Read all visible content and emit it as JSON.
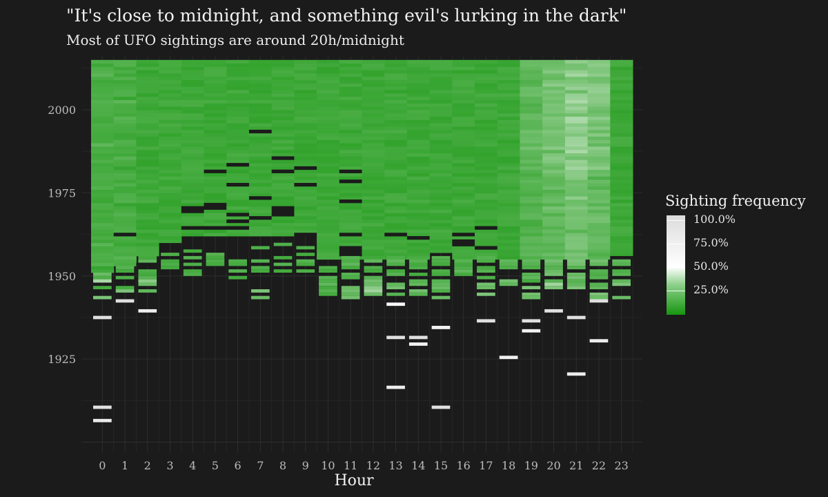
{
  "title": "\"It's close to midnight, and something evil's lurking in the dark\"",
  "subtitle": "Most of UFO sightings are around 20h/midnight",
  "chart_data": {
    "type": "heatmap",
    "xlabel": "Hour",
    "ylabel": "",
    "x_ticks": [
      "0",
      "1",
      "2",
      "3",
      "4",
      "5",
      "6",
      "7",
      "8",
      "9",
      "10",
      "11",
      "12",
      "13",
      "14",
      "15",
      "16",
      "17",
      "18",
      "19",
      "20",
      "21",
      "22",
      "23"
    ],
    "y_ticks": [
      "1925",
      "1950",
      "1975",
      "2000"
    ],
    "xlim": [
      -0.5,
      23.5
    ],
    "ylim": [
      1897,
      2016
    ],
    "grid": true,
    "legend": {
      "title": "Sighting frequency",
      "position": "right",
      "labels": [
        "100.0%",
        "75.0%",
        "50.0%",
        "25.0%"
      ]
    },
    "colors": {
      "background": "#1b1b1b",
      "low": "#16960f",
      "mid": "#ffffff",
      "high": "#dcdcdc",
      "empty": "#1b1b1b"
    },
    "series": [
      {
        "hour": 0,
        "dense_from": 1951,
        "sparse": [
          [
            1950,
            0.18
          ],
          [
            1949,
            0.12
          ],
          [
            1948,
            0.32
          ],
          [
            1946,
            0.1
          ],
          [
            1943,
            0.22
          ],
          [
            1937,
            0.95
          ],
          [
            1910,
            0.95
          ],
          [
            1906,
            0.8
          ]
        ],
        "gaps": []
      },
      {
        "hour": 1,
        "dense_from": 1953,
        "sparse": [
          [
            1952,
            0.14
          ],
          [
            1951,
            0.1
          ],
          [
            1949,
            0.12
          ],
          [
            1946,
            0.1
          ],
          [
            1945,
            0.22
          ],
          [
            1942,
            0.95
          ]
        ],
        "gaps": [
          1962
        ]
      },
      {
        "hour": 2,
        "dense_from": 1956,
        "sparse": [
          [
            1955,
            0.1
          ],
          [
            1954,
            0.16
          ],
          [
            1951,
            0.12
          ],
          [
            1950,
            0.1
          ],
          [
            1949,
            0.14
          ],
          [
            1948,
            0.25
          ],
          [
            1947,
            0.18
          ],
          [
            1945,
            0.16
          ],
          [
            1939,
            0.75
          ]
        ],
        "gaps": [
          1953
        ]
      },
      {
        "hour": 3,
        "dense_from": 1960,
        "sparse": [
          [
            1956,
            0.12
          ],
          [
            1954,
            0.1
          ],
          [
            1953,
            0.12
          ],
          [
            1952,
            0.1
          ]
        ],
        "gaps": []
      },
      {
        "hour": 4,
        "dense_from": 1962,
        "sparse": [
          [
            1957,
            0.1
          ],
          [
            1955,
            0.14
          ],
          [
            1953,
            0.12
          ],
          [
            1951,
            0.1
          ],
          [
            1950,
            0.12
          ]
        ],
        "gaps": [
          1969,
          1970,
          1964
        ]
      },
      {
        "hour": 5,
        "dense_from": 1962,
        "sparse": [
          [
            1956,
            0.14
          ],
          [
            1955,
            0.1
          ],
          [
            1954,
            0.12
          ],
          [
            1953,
            0.1
          ]
        ],
        "gaps": [
          1981,
          1971,
          1970,
          1964
        ]
      },
      {
        "hour": 6,
        "dense_from": 1962,
        "sparse": [
          [
            1954,
            0.12
          ],
          [
            1953,
            0.1
          ],
          [
            1951,
            0.14
          ],
          [
            1949,
            0.1
          ]
        ],
        "gaps": [
          1983,
          1977,
          1968,
          1966,
          1964
        ]
      },
      {
        "hour": 7,
        "dense_from": 1962,
        "sparse": [
          [
            1958,
            0.12
          ],
          [
            1954,
            0.14
          ],
          [
            1952,
            0.12
          ],
          [
            1951,
            0.1
          ],
          [
            1945,
            0.22
          ],
          [
            1943,
            0.18
          ]
        ],
        "gaps": [
          1993,
          1973,
          1967
        ]
      },
      {
        "hour": 8,
        "dense_from": 1962,
        "sparse": [
          [
            1959,
            0.12
          ],
          [
            1955,
            0.1
          ],
          [
            1953,
            0.14
          ],
          [
            1951,
            0.1
          ]
        ],
        "gaps": [
          1985,
          1981,
          1970,
          1969,
          1968
        ]
      },
      {
        "hour": 9,
        "dense_from": 1962,
        "sparse": [
          [
            1958,
            0.12
          ],
          [
            1956,
            0.1
          ],
          [
            1954,
            0.14
          ],
          [
            1953,
            0.1
          ],
          [
            1951,
            0.12
          ]
        ],
        "gaps": [
          1982,
          1977,
          1962
        ]
      },
      {
        "hour": 10,
        "dense_from": 1955,
        "sparse": [
          [
            1952,
            0.12
          ],
          [
            1951,
            0.1
          ],
          [
            1949,
            0.14
          ],
          [
            1948,
            0.12
          ],
          [
            1947,
            0.16
          ],
          [
            1946,
            0.1
          ],
          [
            1945,
            0.14
          ],
          [
            1944,
            0.1
          ]
        ],
        "gaps": []
      },
      {
        "hour": 11,
        "dense_from": 1955,
        "sparse": [
          [
            1955,
            0.14
          ],
          [
            1954,
            0.12
          ],
          [
            1953,
            0.16
          ],
          [
            1952,
            0.1
          ],
          [
            1950,
            0.14
          ],
          [
            1949,
            0.12
          ],
          [
            1946,
            0.18
          ],
          [
            1945,
            0.2
          ],
          [
            1944,
            0.16
          ],
          [
            1943,
            0.2
          ]
        ],
        "gaps": [
          1981,
          1978,
          1972,
          1962,
          1958,
          1957,
          1956
        ]
      },
      {
        "hour": 12,
        "dense_from": 1955,
        "sparse": [
          [
            1954,
            0.16
          ],
          [
            1952,
            0.12
          ],
          [
            1951,
            0.1
          ],
          [
            1949,
            0.14
          ],
          [
            1948,
            0.2
          ],
          [
            1947,
            0.18
          ],
          [
            1946,
            0.25
          ],
          [
            1945,
            0.3
          ],
          [
            1944,
            0.18
          ]
        ],
        "gaps": []
      },
      {
        "hour": 13,
        "dense_from": 1955,
        "sparse": [
          [
            1955,
            0.12
          ],
          [
            1954,
            0.16
          ],
          [
            1953,
            0.12
          ],
          [
            1951,
            0.1
          ],
          [
            1950,
            0.14
          ],
          [
            1947,
            0.16
          ],
          [
            1946,
            0.2
          ],
          [
            1944,
            0.14
          ],
          [
            1941,
            0.6
          ],
          [
            1931,
            0.95
          ],
          [
            1916,
            0.75
          ]
        ],
        "gaps": [
          1962
        ]
      },
      {
        "hour": 14,
        "dense_from": 1955,
        "sparse": [
          [
            1954,
            0.14
          ],
          [
            1953,
            0.1
          ],
          [
            1952,
            0.12
          ],
          [
            1950,
            0.1
          ],
          [
            1948,
            0.14
          ],
          [
            1947,
            0.16
          ],
          [
            1945,
            0.2
          ],
          [
            1944,
            0.14
          ],
          [
            1931,
            0.95
          ],
          [
            1929,
            0.7
          ]
        ],
        "gaps": [
          1961
        ]
      },
      {
        "hour": 15,
        "dense_from": 1957,
        "sparse": [
          [
            1955,
            0.14
          ],
          [
            1954,
            0.12
          ],
          [
            1953,
            0.1
          ],
          [
            1951,
            0.12
          ],
          [
            1950,
            0.1
          ],
          [
            1948,
            0.14
          ],
          [
            1947,
            0.16
          ],
          [
            1946,
            0.18
          ],
          [
            1945,
            0.12
          ],
          [
            1943,
            0.18
          ],
          [
            1934,
            0.7
          ],
          [
            1910,
            0.95
          ]
        ],
        "gaps": []
      },
      {
        "hour": 16,
        "dense_from": 1955,
        "sparse": [
          [
            1954,
            0.14
          ],
          [
            1953,
            0.1
          ],
          [
            1952,
            0.12
          ],
          [
            1951,
            0.16
          ],
          [
            1950,
            0.1
          ]
        ],
        "gaps": [
          1962,
          1960,
          1959
        ]
      },
      {
        "hour": 17,
        "dense_from": 1955,
        "sparse": [
          [
            1955,
            0.14
          ],
          [
            1954,
            0.12
          ],
          [
            1952,
            0.1
          ],
          [
            1951,
            0.14
          ],
          [
            1949,
            0.12
          ],
          [
            1947,
            0.2
          ],
          [
            1946,
            0.18
          ],
          [
            1944,
            0.22
          ],
          [
            1936,
            0.95
          ]
        ],
        "gaps": [
          1964,
          1958
        ]
      },
      {
        "hour": 18,
        "dense_from": 1955,
        "sparse": [
          [
            1954,
            0.16
          ],
          [
            1953,
            0.14
          ],
          [
            1952,
            0.12
          ],
          [
            1948,
            0.2
          ],
          [
            1947,
            0.16
          ],
          [
            1925,
            0.7
          ]
        ],
        "gaps": []
      },
      {
        "hour": 19,
        "dense_from": 1955,
        "sparse": [
          [
            1954,
            0.16
          ],
          [
            1953,
            0.14
          ],
          [
            1952,
            0.12
          ],
          [
            1950,
            0.14
          ],
          [
            1949,
            0.16
          ],
          [
            1948,
            0.1
          ],
          [
            1946,
            0.22
          ],
          [
            1944,
            0.2
          ],
          [
            1943,
            0.18
          ],
          [
            1936,
            0.95
          ],
          [
            1933,
            0.7
          ]
        ],
        "gaps": [
          1951
        ]
      },
      {
        "hour": 20,
        "dense_from": 1955,
        "sparse": [
          [
            1954,
            0.2
          ],
          [
            1953,
            0.16
          ],
          [
            1952,
            0.14
          ],
          [
            1951,
            0.18
          ],
          [
            1950,
            0.2
          ],
          [
            1948,
            0.14
          ],
          [
            1947,
            0.3
          ],
          [
            1946,
            0.22
          ],
          [
            1939,
            0.95
          ]
        ],
        "gaps": []
      },
      {
        "hour": 21,
        "dense_from": 1955,
        "sparse": [
          [
            1954,
            0.22
          ],
          [
            1953,
            0.2
          ],
          [
            1952,
            0.14
          ],
          [
            1950,
            0.18
          ],
          [
            1949,
            0.2
          ],
          [
            1948,
            0.14
          ],
          [
            1947,
            0.16
          ],
          [
            1946,
            0.22
          ],
          [
            1937,
            0.95
          ],
          [
            1920,
            0.75
          ]
        ],
        "gaps": [
          1951
        ]
      },
      {
        "hour": 22,
        "dense_from": 1955,
        "sparse": [
          [
            1954,
            0.2
          ],
          [
            1953,
            0.16
          ],
          [
            1951,
            0.14
          ],
          [
            1950,
            0.12
          ],
          [
            1949,
            0.14
          ],
          [
            1947,
            0.14
          ],
          [
            1946,
            0.16
          ],
          [
            1944,
            0.22
          ],
          [
            1943,
            0.18
          ],
          [
            1942,
            0.95
          ],
          [
            1930,
            0.75
          ]
        ],
        "gaps": []
      },
      {
        "hour": 23,
        "dense_from": 1955,
        "sparse": [
          [
            1954,
            0.16
          ],
          [
            1953,
            0.14
          ],
          [
            1951,
            0.12
          ],
          [
            1950,
            0.14
          ],
          [
            1948,
            0.16
          ],
          [
            1947,
            0.22
          ],
          [
            1943,
            0.18
          ]
        ],
        "gaps": [
          1955,
          1949
        ]
      }
    ]
  }
}
